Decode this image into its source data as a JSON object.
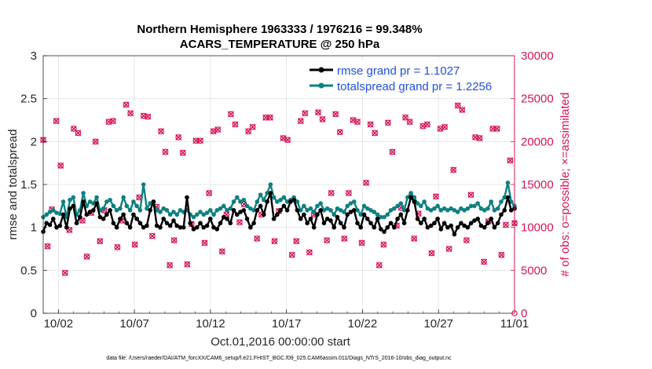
{
  "chart_data": {
    "type": "line",
    "title_line1": "Northern Hemisphere 1963333 / 1976216 = 99.348%",
    "title_line2": "ACARS_TEMPERATURE @ 250 hPa",
    "xlabel": "Oct.01,2016 00:00:00 start",
    "ylabel_left": "rmse and totalspread",
    "ylabel_right": "# of obs: o=possible; ×=assimilated",
    "footer": "data file: /Users/raeder/DAI/ATM_forcXX/CAM6_setup/f.e21.FHIST_BGC.f09_025.CAM6assim.011/Diags_NTrS_2016-10/obs_diag_output.nc",
    "x_range": [
      0,
      31
    ],
    "x_tick_values": [
      1,
      6,
      11,
      16,
      21,
      26,
      31
    ],
    "x_tick_labels": [
      "10/02",
      "10/07",
      "10/12",
      "10/17",
      "10/22",
      "10/27",
      "11/01"
    ],
    "ylim_left": [
      0,
      3
    ],
    "left_ticks": [
      "0",
      "0.5",
      "1",
      "1.5",
      "2",
      "2.5",
      "3"
    ],
    "ylim_right": [
      0,
      30000
    ],
    "right_ticks": [
      "0",
      "5000",
      "10000",
      "15000",
      "20000",
      "25000",
      "30000"
    ],
    "colors": {
      "rmse": "#000000",
      "spread": "#0f8080",
      "obs": "#d4145a",
      "legend_text": "#1f4fe0",
      "grid": "#e2e2e2"
    },
    "series": [
      {
        "name": "rmse grand pr = 1.1027",
        "color": "#000000",
        "values": [
          0.95,
          1.05,
          1.03,
          1.1,
          1.0,
          1.02,
          1.15,
          1.0,
          1.22,
          1.25,
          1.05,
          1.12,
          1.3,
          1.15,
          1.18,
          1.2,
          1.28,
          1.12,
          1.1,
          1.15,
          1.2,
          1.05,
          1.0,
          1.1,
          1.15,
          1.05,
          1.0,
          1.15,
          1.1,
          1.05,
          1.0,
          1.02,
          1.2,
          1.3,
          1.02,
          1.0,
          1.1,
          1.05,
          1.02,
          1.08,
          1.02,
          1.0,
          1.0,
          1.35,
          1.05,
          0.98,
          1.0,
          1.05,
          1.0,
          1.02,
          1.1,
          1.0,
          0.98,
          1.05,
          1.12,
          1.1,
          1.05,
          1.2,
          1.15,
          1.18,
          1.2,
          1.1,
          1.0,
          1.05,
          1.2,
          1.25,
          1.15,
          1.3,
          1.4,
          1.1,
          1.15,
          1.2,
          1.25,
          1.2,
          1.3,
          1.32,
          1.2,
          1.1,
          1.15,
          1.05,
          1.1,
          1.0,
          1.15,
          1.2,
          1.05,
          1.1,
          1.08,
          1.0,
          1.12,
          1.05,
          1.0,
          1.15,
          1.18,
          1.2,
          1.05,
          1.0,
          1.15,
          1.1,
          1.05,
          1.0,
          1.1,
          0.98,
          0.95,
          1.0,
          1.05,
          1.0,
          1.1,
          1.15,
          1.05,
          1.2,
          1.35,
          1.3,
          1.1,
          1.05,
          1.1,
          1.0,
          1.02,
          1.05,
          1.1,
          0.98,
          1.05,
          1.0,
          1.02,
          0.92,
          1.0,
          1.05,
          1.02,
          1.0,
          1.05,
          1.08,
          1.1,
          1.02,
          1.0,
          1.05,
          1.1,
          1.0,
          1.05,
          1.15,
          1.2,
          1.35,
          1.2,
          1.22
        ],
        "markers": "filled circles"
      },
      {
        "name": "totalspread grand pr = 1.2256",
        "color": "#0f8080",
        "values": [
          1.12,
          1.15,
          1.18,
          1.2,
          1.17,
          1.16,
          1.3,
          1.12,
          1.32,
          1.35,
          1.15,
          1.2,
          1.4,
          1.25,
          1.3,
          1.28,
          1.35,
          1.2,
          1.22,
          1.3,
          1.32,
          1.25,
          1.2,
          1.22,
          1.35,
          1.25,
          1.2,
          1.3,
          1.25,
          1.2,
          1.5,
          1.22,
          1.28,
          1.3,
          1.2,
          1.18,
          1.22,
          1.2,
          1.15,
          1.18,
          1.15,
          1.2,
          1.18,
          1.2,
          1.15,
          1.12,
          1.15,
          1.18,
          1.15,
          1.17,
          1.2,
          1.15,
          1.2,
          1.22,
          1.25,
          1.2,
          1.22,
          1.3,
          1.35,
          1.3,
          1.32,
          1.25,
          1.22,
          1.2,
          1.3,
          1.38,
          1.32,
          1.4,
          1.5,
          1.35,
          1.3,
          1.32,
          1.35,
          1.3,
          1.32,
          1.35,
          1.3,
          1.2,
          1.25,
          1.2,
          1.22,
          1.18,
          1.25,
          1.28,
          1.2,
          1.22,
          1.2,
          1.15,
          1.22,
          1.2,
          1.18,
          1.25,
          1.28,
          1.3,
          1.2,
          1.15,
          1.25,
          1.22,
          1.2,
          1.18,
          1.15,
          1.12,
          1.12,
          1.15,
          1.2,
          1.22,
          1.25,
          1.28,
          1.2,
          1.35,
          1.4,
          1.35,
          1.28,
          1.25,
          1.3,
          1.22,
          1.2,
          1.22,
          1.25,
          1.2,
          1.22,
          1.2,
          1.22,
          1.2,
          1.18,
          1.22,
          1.2,
          1.22,
          1.25,
          1.25,
          1.28,
          1.22,
          1.2,
          1.22,
          1.3,
          1.2,
          1.22,
          1.3,
          1.35,
          1.52,
          1.3,
          1.25
        ],
        "markers": "filled circles"
      },
      {
        "name": "obs possible / assimilated",
        "axis": "right",
        "color": "#d4145a",
        "values": [
          20200,
          7800,
          12100,
          22400,
          17200,
          4700,
          9700,
          21500,
          21000,
          10800,
          6600,
          11700,
          20000,
          8400,
          12000,
          22300,
          22400,
          7700,
          10800,
          24300,
          23300,
          8000,
          13500,
          23000,
          22900,
          9000,
          12400,
          21200,
          18800,
          5600,
          8500,
          20500,
          18700,
          5700,
          10400,
          20100,
          20100,
          8200,
          14000,
          21200,
          21400,
          7200,
          11500,
          23200,
          22000,
          10600,
          12700,
          21200,
          21700,
          8700,
          11500,
          22800,
          22800,
          8400,
          11900,
          20400,
          20200,
          6800,
          8400,
          22400,
          23300,
          7100,
          11500,
          23400,
          22600,
          8500,
          14000,
          23200,
          21100,
          8700,
          14000,
          22500,
          22300,
          8200,
          15200,
          22000,
          21000,
          5600,
          8000,
          22200,
          18800,
          10200,
          12300,
          22800,
          22300,
          8700,
          11600,
          21800,
          22000,
          7000,
          13600,
          21500,
          21700,
          7500,
          16700,
          24200,
          23700,
          8500,
          13800,
          20500,
          20400,
          6000,
          10700,
          21500,
          21500,
          6800,
          10300,
          17800,
          10500
        ]
      }
    ]
  }
}
